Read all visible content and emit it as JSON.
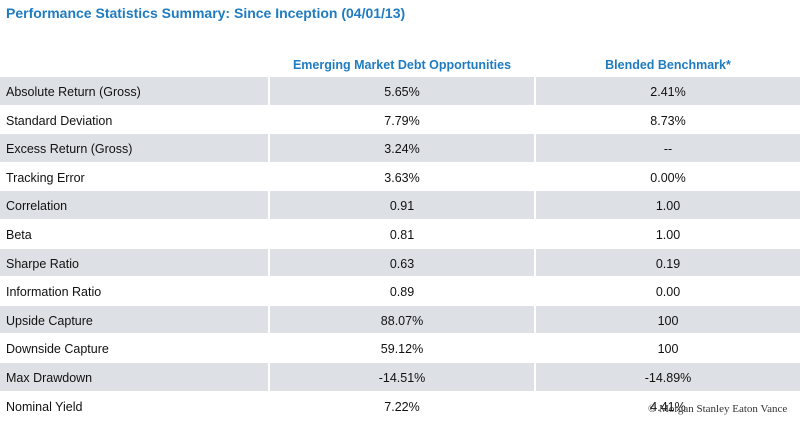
{
  "header": {
    "title": "Performance Statistics Summary: Since Inception (04/01/13)"
  },
  "table": {
    "columns": [
      "Emerging Market Debt Opportunities",
      "Blended Benchmark*"
    ],
    "rows": [
      [
        "Absolute Return (Gross)",
        "5.65%",
        "2.41%"
      ],
      [
        "Standard Deviation",
        "7.79%",
        "8.73%"
      ],
      [
        "Excess Return (Gross)",
        "3.24%",
        "--"
      ],
      [
        "Tracking Error",
        "3.63%",
        "0.00%"
      ],
      [
        "Correlation",
        "0.91",
        "1.00"
      ],
      [
        "Beta",
        "0.81",
        "1.00"
      ],
      [
        "Sharpe Ratio",
        "0.63",
        "0.19"
      ],
      [
        "Information Ratio",
        "0.89",
        "0.00"
      ],
      [
        "Upside Capture",
        "88.07%",
        "100"
      ],
      [
        "Downside Capture",
        "59.12%",
        "100"
      ],
      [
        "Max Drawdown",
        "-14.51%",
        "-14.89%"
      ],
      [
        "Nominal Yield",
        "7.22%",
        "4.41%"
      ]
    ]
  },
  "footer": {
    "copyright": "© Morgan Stanley Eaton Vance"
  }
}
